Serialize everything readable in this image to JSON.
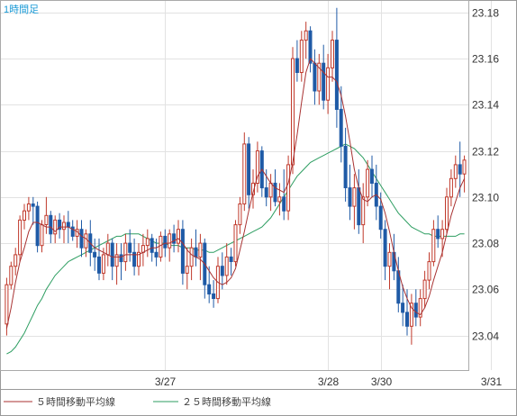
{
  "chart_data": {
    "type": "candlestick",
    "title": "1時間足",
    "ylim": [
      23.025,
      23.185
    ],
    "yticks": [
      23.04,
      23.06,
      23.08,
      23.1,
      23.12,
      23.14,
      23.16,
      23.18
    ],
    "ytick_labels": [
      "23.04",
      "23.06",
      "23.08",
      "23.10",
      "23.12",
      "23.14",
      "23.16",
      "23.18"
    ],
    "xtick_labels": [
      {
        "label": "3/27",
        "index": 36
      },
      {
        "label": "3/28",
        "index": 73
      },
      {
        "label": "3/30",
        "index": 85
      },
      {
        "label": "3/31",
        "index": 110
      }
    ],
    "grid": true,
    "legend_position": "bottom",
    "colors": {
      "up": "#c0392b",
      "down": "#1f5aa6",
      "ma5": "#a83232",
      "ma25": "#2e9e62"
    },
    "series": [
      {
        "name": "５時間移動平均線",
        "kind": "ma5",
        "color": "#a83232"
      },
      {
        "name": "２５時間移動平均線",
        "kind": "ma25",
        "color": "#2e9e62"
      }
    ],
    "candles": [
      [
        23.045,
        23.065,
        23.04,
        23.062
      ],
      [
        23.062,
        23.072,
        23.06,
        23.07
      ],
      [
        23.07,
        23.078,
        23.066,
        23.075
      ],
      [
        23.075,
        23.092,
        23.072,
        23.09
      ],
      [
        23.09,
        23.097,
        23.086,
        23.094
      ],
      [
        23.094,
        23.1,
        23.09,
        23.097
      ],
      [
        23.097,
        23.1,
        23.088,
        23.096
      ],
      [
        23.096,
        23.098,
        23.076,
        23.079
      ],
      [
        23.079,
        23.09,
        23.076,
        23.088
      ],
      [
        23.088,
        23.1,
        23.084,
        23.092
      ],
      [
        23.092,
        23.094,
        23.08,
        23.084
      ],
      [
        23.084,
        23.092,
        23.08,
        23.09
      ],
      [
        23.09,
        23.093,
        23.082,
        23.086
      ],
      [
        23.086,
        23.092,
        23.08,
        23.089
      ],
      [
        23.089,
        23.094,
        23.08,
        23.087
      ],
      [
        23.087,
        23.09,
        23.081,
        23.083
      ],
      [
        23.083,
        23.09,
        23.078,
        23.086
      ],
      [
        23.086,
        23.09,
        23.074,
        23.078
      ],
      [
        23.078,
        23.086,
        23.074,
        23.084
      ],
      [
        23.084,
        23.09,
        23.07,
        23.076
      ],
      [
        23.076,
        23.082,
        23.068,
        23.074
      ],
      [
        23.074,
        23.082,
        23.064,
        23.067
      ],
      [
        23.067,
        23.078,
        23.064,
        23.075
      ],
      [
        23.075,
        23.084,
        23.07,
        23.08
      ],
      [
        23.08,
        23.082,
        23.064,
        23.07
      ],
      [
        23.07,
        23.08,
        23.062,
        23.075
      ],
      [
        23.075,
        23.08,
        23.064,
        23.072
      ],
      [
        23.072,
        23.084,
        23.068,
        23.08
      ],
      [
        23.08,
        23.086,
        23.072,
        23.076
      ],
      [
        23.076,
        23.082,
        23.066,
        23.07
      ],
      [
        23.07,
        23.08,
        23.066,
        23.076
      ],
      [
        23.076,
        23.084,
        23.07,
        23.079
      ],
      [
        23.079,
        23.086,
        23.074,
        23.082
      ],
      [
        23.082,
        23.084,
        23.072,
        23.076
      ],
      [
        23.076,
        23.082,
        23.07,
        23.074
      ],
      [
        23.074,
        23.085,
        23.072,
        23.083
      ],
      [
        23.083,
        23.086,
        23.074,
        23.078
      ],
      [
        23.078,
        23.086,
        23.072,
        23.084
      ],
      [
        23.084,
        23.088,
        23.076,
        23.08
      ],
      [
        23.08,
        23.09,
        23.076,
        23.086
      ],
      [
        23.086,
        23.09,
        23.062,
        23.067
      ],
      [
        23.067,
        23.078,
        23.06,
        23.07
      ],
      [
        23.07,
        23.082,
        23.064,
        23.078
      ],
      [
        23.078,
        23.086,
        23.07,
        23.074
      ],
      [
        23.074,
        23.084,
        23.064,
        23.08
      ],
      [
        23.08,
        23.082,
        23.056,
        23.062
      ],
      [
        23.062,
        23.07,
        23.054,
        23.058
      ],
      [
        23.058,
        23.064,
        23.052,
        23.056
      ],
      [
        23.056,
        23.074,
        23.054,
        23.07
      ],
      [
        23.07,
        23.076,
        23.06,
        23.066
      ],
      [
        23.066,
        23.08,
        23.062,
        23.074
      ],
      [
        23.074,
        23.078,
        23.066,
        23.072
      ],
      [
        23.072,
        23.09,
        23.07,
        23.088
      ],
      [
        23.088,
        23.1,
        23.084,
        23.097
      ],
      [
        23.097,
        23.128,
        23.094,
        23.123
      ],
      [
        23.123,
        23.126,
        23.095,
        23.101
      ],
      [
        23.101,
        23.112,
        23.095,
        23.106
      ],
      [
        23.106,
        23.124,
        23.102,
        23.12
      ],
      [
        23.12,
        23.122,
        23.1,
        23.104
      ],
      [
        23.104,
        23.112,
        23.096,
        23.1
      ],
      [
        23.1,
        23.11,
        23.094,
        23.106
      ],
      [
        23.106,
        23.112,
        23.096,
        23.098
      ],
      [
        23.098,
        23.106,
        23.092,
        23.1
      ],
      [
        23.1,
        23.112,
        23.09,
        23.094
      ],
      [
        23.094,
        23.118,
        23.09,
        23.114
      ],
      [
        23.114,
        23.165,
        23.11,
        23.16
      ],
      [
        23.16,
        23.168,
        23.15,
        23.154
      ],
      [
        23.154,
        23.172,
        23.15,
        23.168
      ],
      [
        23.168,
        23.176,
        23.16,
        23.172
      ],
      [
        23.172,
        23.174,
        23.154,
        23.158
      ],
      [
        23.158,
        23.164,
        23.14,
        23.146
      ],
      [
        23.146,
        23.162,
        23.14,
        23.158
      ],
      [
        23.158,
        23.166,
        23.138,
        23.142
      ],
      [
        23.142,
        23.162,
        23.136,
        23.156
      ],
      [
        23.156,
        23.172,
        23.15,
        23.168
      ],
      [
        23.168,
        23.182,
        23.13,
        23.138
      ],
      [
        23.138,
        23.148,
        23.115,
        23.122
      ],
      [
        23.122,
        23.13,
        23.098,
        23.104
      ],
      [
        23.104,
        23.114,
        23.09,
        23.096
      ],
      [
        23.096,
        23.11,
        23.086,
        23.104
      ],
      [
        23.104,
        23.112,
        23.084,
        23.088
      ],
      [
        23.088,
        23.106,
        23.08,
        23.1
      ],
      [
        23.1,
        23.116,
        23.096,
        23.112
      ],
      [
        23.112,
        23.118,
        23.1,
        23.106
      ],
      [
        23.106,
        23.114,
        23.09,
        23.096
      ],
      [
        23.096,
        23.102,
        23.082,
        23.086
      ],
      [
        23.086,
        23.09,
        23.064,
        23.07
      ],
      [
        23.07,
        23.08,
        23.06,
        23.076
      ],
      [
        23.076,
        23.084,
        23.064,
        23.068
      ],
      [
        23.068,
        23.074,
        23.05,
        23.054
      ],
      [
        23.054,
        23.062,
        23.044,
        23.05
      ],
      [
        23.05,
        23.06,
        23.04,
        23.044
      ],
      [
        23.044,
        23.058,
        23.036,
        23.054
      ],
      [
        23.054,
        23.06,
        23.044,
        23.048
      ],
      [
        23.048,
        23.06,
        23.044,
        23.056
      ],
      [
        23.056,
        23.068,
        23.052,
        23.064
      ],
      [
        23.064,
        23.076,
        23.06,
        23.072
      ],
      [
        23.072,
        23.09,
        23.07,
        23.086
      ],
      [
        23.086,
        23.092,
        23.078,
        23.082
      ],
      [
        23.082,
        23.09,
        23.074,
        23.086
      ],
      [
        23.086,
        23.104,
        23.084,
        23.1
      ],
      [
        23.1,
        23.112,
        23.096,
        23.108
      ],
      [
        23.108,
        23.118,
        23.104,
        23.114
      ],
      [
        23.114,
        23.124,
        23.1,
        23.11
      ],
      [
        23.11,
        23.118,
        23.102,
        23.116
      ]
    ],
    "ma5": [
      23.043,
      23.052,
      23.063,
      23.072,
      23.078,
      23.085,
      23.089,
      23.089,
      23.088,
      23.087,
      23.087,
      23.085,
      23.087,
      23.087,
      23.087,
      23.086,
      23.085,
      23.083,
      23.082,
      23.08,
      23.078,
      23.077,
      23.076,
      23.075,
      23.074,
      23.074,
      23.074,
      23.075,
      23.075,
      23.075,
      23.075,
      23.076,
      23.077,
      23.078,
      23.078,
      23.079,
      23.08,
      23.08,
      23.081,
      23.082,
      23.08,
      23.077,
      23.075,
      23.074,
      23.073,
      23.071,
      23.068,
      23.065,
      23.063,
      23.062,
      23.063,
      23.065,
      23.069,
      23.077,
      23.085,
      23.094,
      23.102,
      23.109,
      23.112,
      23.109,
      23.106,
      23.104,
      23.103,
      23.102,
      23.106,
      23.115,
      23.127,
      23.141,
      23.154,
      23.16,
      23.158,
      23.156,
      23.154,
      23.152,
      23.152,
      23.15,
      23.144,
      23.135,
      23.124,
      23.112,
      23.104,
      23.099,
      23.098,
      23.1,
      23.101,
      23.099,
      23.093,
      23.085,
      23.076,
      23.068,
      23.061,
      23.056,
      23.052,
      23.05,
      23.049,
      23.052,
      23.057,
      23.064,
      23.07,
      23.076,
      23.084,
      23.092,
      23.098,
      23.104,
      23.108
    ],
    "ma25": [
      23.032,
      23.033,
      23.035,
      23.038,
      23.041,
      23.045,
      23.049,
      23.053,
      23.056,
      23.06,
      23.063,
      23.066,
      23.068,
      23.07,
      23.072,
      23.073,
      23.074,
      23.075,
      23.076,
      23.077,
      23.078,
      23.079,
      23.08,
      23.081,
      23.082,
      23.083,
      23.083,
      23.084,
      23.084,
      23.084,
      23.084,
      23.083,
      23.082,
      23.081,
      23.08,
      23.08,
      23.08,
      23.079,
      23.079,
      23.079,
      23.078,
      23.078,
      23.078,
      23.077,
      23.077,
      23.077,
      23.076,
      23.076,
      23.077,
      23.078,
      23.079,
      23.08,
      23.081,
      23.082,
      23.083,
      23.084,
      23.085,
      23.086,
      23.087,
      23.089,
      23.091,
      23.094,
      23.097,
      23.1,
      23.103,
      23.106,
      23.109,
      23.111,
      23.113,
      23.115,
      23.116,
      23.117,
      23.118,
      23.119,
      23.12,
      23.121,
      23.122,
      23.123,
      23.122,
      23.121,
      23.119,
      23.117,
      23.114,
      23.111,
      23.108,
      23.105,
      23.102,
      23.099,
      23.096,
      23.093,
      23.091,
      23.089,
      23.087,
      23.086,
      23.085,
      23.084,
      23.084,
      23.083,
      23.083,
      23.083,
      23.083,
      23.083,
      23.083,
      23.084,
      23.084
    ]
  }
}
